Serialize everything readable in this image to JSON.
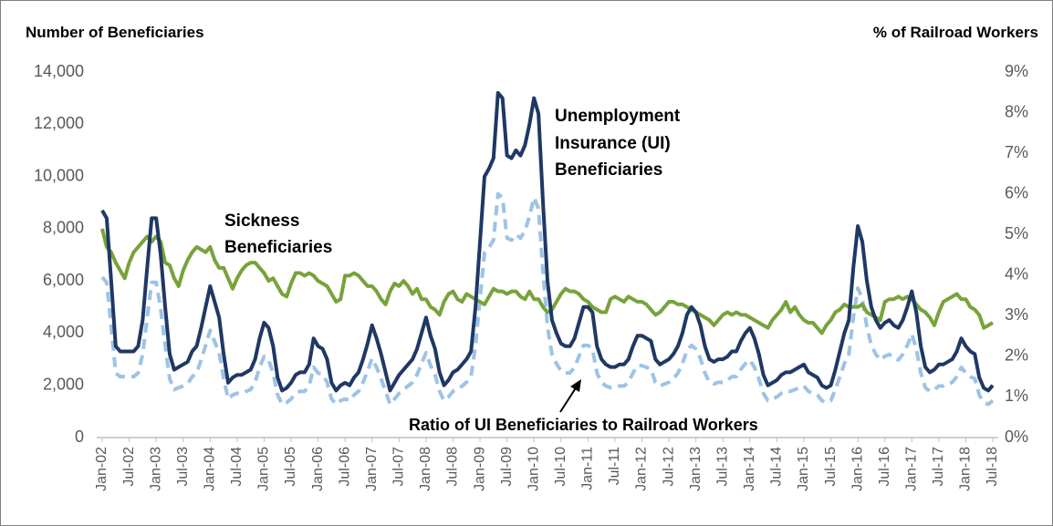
{
  "chart_data": {
    "type": "line",
    "y_axis_label": "Number of Beneficiaries",
    "y2_axis_label": "% of Railroad Workers",
    "annotations": [
      {
        "lines": [
          "Unemployment",
          "Insurance (UI)",
          "Beneficiaries"
        ]
      },
      {
        "lines": [
          "Sickness",
          "Beneficiaries"
        ]
      },
      {
        "lines": [
          "Ratio of UI Beneficiaries to Railroad Workers"
        ]
      }
    ],
    "categories": [
      "Jan-02",
      null,
      null,
      null,
      null,
      null,
      "Jul-02",
      null,
      null,
      null,
      null,
      null,
      "Jan-03",
      null,
      null,
      null,
      null,
      null,
      "Jul-03",
      null,
      null,
      null,
      null,
      null,
      "Jan-04",
      null,
      null,
      null,
      null,
      null,
      "Jul-04",
      null,
      null,
      null,
      null,
      null,
      "Jan-05",
      null,
      null,
      null,
      null,
      null,
      "Jul-05",
      null,
      null,
      null,
      null,
      null,
      "Jan-06",
      null,
      null,
      null,
      null,
      null,
      "Jul-06",
      null,
      null,
      null,
      null,
      null,
      "Jan-07",
      null,
      null,
      null,
      null,
      null,
      "Jul-07",
      null,
      null,
      null,
      null,
      null,
      "Jan-08",
      null,
      null,
      null,
      null,
      null,
      "Jul-08",
      null,
      null,
      null,
      null,
      null,
      "Jan-09",
      null,
      null,
      null,
      null,
      null,
      "Jul-09",
      null,
      null,
      null,
      null,
      null,
      "Jan-10",
      null,
      null,
      null,
      null,
      null,
      "Jul-10",
      null,
      null,
      null,
      null,
      null,
      "Jan-11",
      null,
      null,
      null,
      null,
      null,
      "Jul-11",
      null,
      null,
      null,
      null,
      null,
      "Jan-12",
      null,
      null,
      null,
      null,
      null,
      "Jul-12",
      null,
      null,
      null,
      null,
      null,
      "Jan-13",
      null,
      null,
      null,
      null,
      null,
      "Jul-13",
      null,
      null,
      null,
      null,
      null,
      "Jan-14",
      null,
      null,
      null,
      null,
      null,
      "Jul-14",
      null,
      null,
      null,
      null,
      null,
      "Jan-15",
      null,
      null,
      null,
      null,
      null,
      "Jul-15",
      null,
      null,
      null,
      null,
      null,
      "Jan-16",
      null,
      null,
      null,
      null,
      null,
      "Jul-16",
      null,
      null,
      null,
      null,
      null,
      "Jan-17",
      null,
      null,
      null,
      null,
      null,
      "Jul-17",
      null,
      null,
      null,
      null,
      null,
      "Jan-18",
      null,
      null,
      null,
      null,
      null,
      "Jul-18"
    ],
    "series": [
      {
        "color": "#9dc3e6",
        "dashed": true,
        "axis": "y2",
        "values": [
          3.95,
          3.82,
          2.73,
          1.59,
          1.5,
          1.5,
          1.5,
          1.5,
          1.59,
          2.05,
          2.95,
          3.82,
          3.82,
          3.18,
          2.27,
          1.45,
          1.18,
          1.23,
          1.27,
          1.32,
          1.5,
          1.59,
          1.91,
          2.27,
          2.64,
          2.36,
          2.09,
          1.45,
          0.95,
          1.05,
          1.09,
          1.09,
          1.14,
          1.18,
          1.36,
          1.73,
          2.0,
          1.91,
          1.59,
          1.05,
          0.82,
          0.86,
          0.95,
          1.09,
          1.14,
          1.14,
          1.27,
          1.73,
          1.59,
          1.55,
          1.36,
          0.95,
          0.82,
          0.91,
          0.95,
          0.91,
          1.05,
          1.14,
          1.36,
          1.64,
          1.95,
          1.73,
          1.45,
          1.14,
          0.82,
          0.95,
          1.09,
          1.18,
          1.27,
          1.36,
          1.55,
          1.82,
          2.09,
          1.77,
          1.55,
          1.14,
          0.91,
          1.0,
          1.14,
          1.18,
          1.27,
          1.36,
          1.5,
          2.27,
          3.41,
          4.55,
          4.68,
          4.86,
          6.0,
          5.91,
          4.91,
          4.86,
          5.0,
          4.91,
          5.09,
          5.45,
          5.91,
          5.64,
          4.09,
          2.73,
          2.05,
          1.82,
          1.64,
          1.59,
          1.59,
          1.73,
          2.0,
          2.27,
          2.27,
          2.18,
          1.59,
          1.36,
          1.27,
          1.23,
          1.23,
          1.27,
          1.27,
          1.36,
          1.59,
          1.77,
          1.77,
          1.73,
          1.68,
          1.36,
          1.27,
          1.32,
          1.36,
          1.45,
          1.59,
          1.82,
          2.14,
          2.27,
          2.18,
          1.95,
          1.59,
          1.36,
          1.32,
          1.36,
          1.36,
          1.41,
          1.5,
          1.5,
          1.68,
          1.82,
          1.91,
          1.73,
          1.45,
          1.09,
          0.91,
          0.95,
          1.0,
          1.09,
          1.14,
          1.14,
          1.18,
          1.23,
          1.27,
          1.14,
          1.09,
          1.05,
          0.91,
          0.86,
          0.91,
          1.18,
          1.5,
          1.82,
          2.05,
          2.95,
          3.68,
          3.41,
          2.73,
          2.27,
          2.05,
          1.91,
          2.0,
          2.05,
          1.95,
          1.91,
          2.05,
          2.27,
          2.55,
          2.18,
          1.59,
          1.23,
          1.14,
          1.18,
          1.27,
          1.27,
          1.32,
          1.36,
          1.5,
          1.73,
          1.59,
          1.5,
          1.45,
          1.05,
          0.86,
          0.82,
          0.91
        ]
      },
      {
        "color": "#77a33a",
        "values": [
          8000,
          7300,
          7100,
          6700,
          6400,
          6100,
          6700,
          7100,
          7300,
          7500,
          7700,
          7500,
          7700,
          7500,
          6700,
          6600,
          6100,
          5800,
          6400,
          6800,
          7100,
          7300,
          7200,
          7100,
          7300,
          6800,
          6500,
          6500,
          6100,
          5700,
          6100,
          6400,
          6600,
          6700,
          6700,
          6500,
          6300,
          6000,
          6100,
          5800,
          5500,
          5400,
          5900,
          6300,
          6300,
          6200,
          6300,
          6200,
          6000,
          5900,
          5800,
          5500,
          5200,
          5300,
          6200,
          6200,
          6300,
          6200,
          6000,
          5800,
          5800,
          5600,
          5300,
          5100,
          5600,
          5900,
          5800,
          6000,
          5800,
          5500,
          5700,
          5300,
          5300,
          5000,
          4900,
          4700,
          5200,
          5500,
          5600,
          5300,
          5200,
          5500,
          5400,
          5300,
          5200,
          5100,
          5400,
          5700,
          5600,
          5600,
          5500,
          5600,
          5600,
          5400,
          5300,
          5600,
          5300,
          5300,
          5000,
          4800,
          4900,
          5200,
          5500,
          5700,
          5600,
          5600,
          5500,
          5300,
          5200,
          5000,
          4900,
          4800,
          4800,
          5300,
          5400,
          5300,
          5200,
          5400,
          5300,
          5200,
          5200,
          5100,
          4900,
          4700,
          4800,
          5000,
          5200,
          5200,
          5100,
          5100,
          5000,
          4900,
          4800,
          4700,
          4600,
          4500,
          4300,
          4500,
          4700,
          4800,
          4700,
          4800,
          4700,
          4700,
          4600,
          4500,
          4400,
          4300,
          4200,
          4500,
          4700,
          4900,
          5200,
          4800,
          5000,
          4700,
          4500,
          4400,
          4400,
          4200,
          4000,
          4300,
          4500,
          4800,
          4900,
          5100,
          5000,
          5000,
          5000,
          5100,
          4800,
          4700,
          4600,
          4500,
          5200,
          5300,
          5300,
          5400,
          5300,
          5400,
          5300,
          5100,
          4900,
          4800,
          4600,
          4300,
          4800,
          5200,
          5300,
          5400,
          5500,
          5300,
          5300,
          5000,
          4900,
          4700,
          4200,
          4300,
          4400
        ]
      },
      {
        "color": "#1f3864",
        "values": [
          8700,
          8400,
          6000,
          3500,
          3300,
          3300,
          3300,
          3300,
          3500,
          4500,
          6500,
          8400,
          8400,
          7000,
          5000,
          3200,
          2600,
          2700,
          2800,
          2900,
          3300,
          3500,
          4200,
          5000,
          5800,
          5200,
          4600,
          3200,
          2100,
          2300,
          2400,
          2400,
          2500,
          2600,
          3000,
          3800,
          4400,
          4200,
          3500,
          2300,
          1800,
          1900,
          2100,
          2400,
          2500,
          2500,
          2800,
          3800,
          3500,
          3400,
          3000,
          2100,
          1800,
          2000,
          2100,
          2000,
          2300,
          2500,
          3000,
          3600,
          4300,
          3800,
          3200,
          2500,
          1800,
          2100,
          2400,
          2600,
          2800,
          3000,
          3400,
          4000,
          4600,
          3900,
          3400,
          2500,
          2000,
          2200,
          2500,
          2600,
          2800,
          3000,
          3300,
          5000,
          7500,
          10000,
          10300,
          10700,
          13200,
          13000,
          10800,
          10700,
          11000,
          10800,
          11200,
          12000,
          13000,
          12400,
          9000,
          6000,
          4500,
          4000,
          3600,
          3500,
          3500,
          3800,
          4400,
          5000,
          5000,
          4800,
          3500,
          3000,
          2800,
          2700,
          2700,
          2800,
          2800,
          3000,
          3500,
          3900,
          3900,
          3800,
          3700,
          3000,
          2800,
          2900,
          3000,
          3200,
          3500,
          4000,
          4700,
          5000,
          4800,
          4300,
          3500,
          3000,
          2900,
          3000,
          3000,
          3100,
          3300,
          3300,
          3700,
          4000,
          4200,
          3800,
          3200,
          2400,
          2000,
          2100,
          2200,
          2400,
          2500,
          2500,
          2600,
          2700,
          2800,
          2500,
          2400,
          2300,
          2000,
          1900,
          2000,
          2600,
          3300,
          4000,
          4500,
          6500,
          8100,
          7500,
          6000,
          5000,
          4500,
          4200,
          4400,
          4500,
          4300,
          4200,
          4500,
          5000,
          5600,
          4800,
          3500,
          2700,
          2500,
          2600,
          2800,
          2800,
          2900,
          3000,
          3300,
          3800,
          3500,
          3300,
          3200,
          2300,
          1900,
          1800,
          2000
        ]
      }
    ],
    "ylim": [
      0,
      14000
    ],
    "yticks": [
      0,
      {
        "value": 2000,
        "label": "2,000"
      },
      {
        "value": 4000,
        "label": "4,000"
      },
      {
        "value": 6000,
        "label": "6,000"
      },
      {
        "value": 8000,
        "label": "8,000"
      },
      {
        "value": 10000,
        "label": "10,000"
      },
      {
        "value": 12000,
        "label": "12,000"
      },
      {
        "value": 14000,
        "label": "14,000"
      }
    ],
    "y2lim": [
      0,
      9
    ],
    "y2ticks": [
      {
        "value": 0,
        "label": "0%"
      },
      {
        "value": 1,
        "label": "1%"
      },
      {
        "value": 2,
        "label": "2%"
      },
      {
        "value": 3,
        "label": "3%"
      },
      {
        "value": 4,
        "label": "4%"
      },
      {
        "value": 5,
        "label": "5%"
      },
      {
        "value": 6,
        "label": "6%"
      },
      {
        "value": 7,
        "label": "7%"
      },
      {
        "value": 8,
        "label": "8%"
      },
      {
        "value": 9,
        "label": "9%"
      }
    ]
  }
}
